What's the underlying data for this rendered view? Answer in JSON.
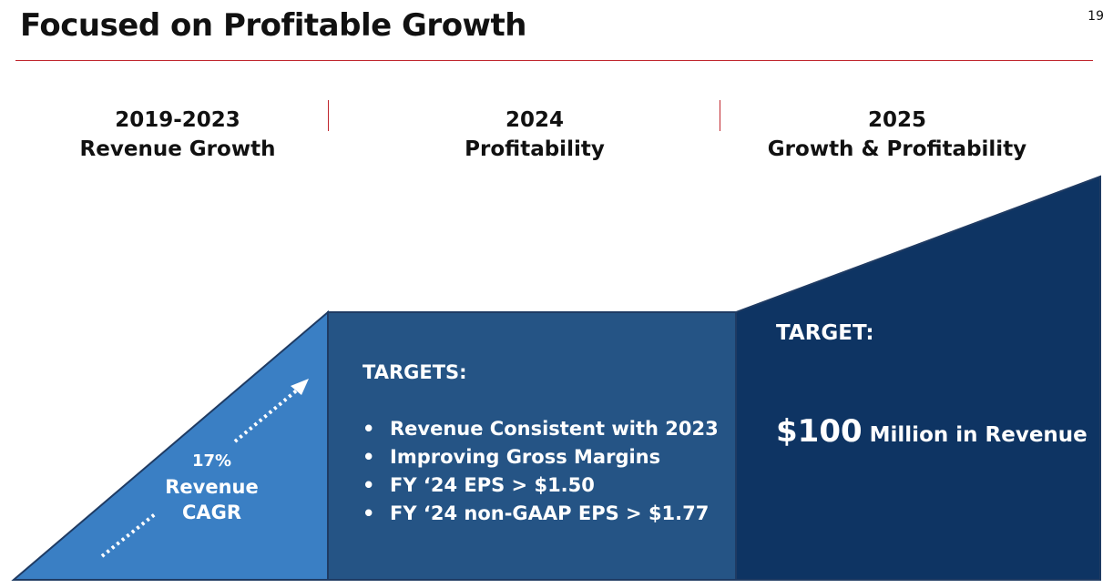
{
  "header": {
    "title": "Focused on Profitable Growth",
    "page_number": "19"
  },
  "phases": [
    {
      "year": "2019-2023",
      "label": "Revenue Growth"
    },
    {
      "year": "2024",
      "label": "Profitability"
    },
    {
      "year": "2025",
      "label": "Growth & Profitability"
    }
  ],
  "triangle": {
    "pct": "17%",
    "line1": "Revenue",
    "line2": "CAGR"
  },
  "middle": {
    "heading": "TARGETS:",
    "items": [
      "Revenue Consistent with 2023",
      "Improving Gross Margins",
      "FY ‘24 EPS > $1.50",
      "FY ‘24 non-GAAP EPS > $1.77"
    ]
  },
  "right": {
    "heading": "TARGET:",
    "amount": "$100",
    "amount_suffix": " Million in Revenue"
  },
  "colors": {
    "accent_red": "#c0262d",
    "light_blue": "#3a7fc4",
    "mid_blue": "#255485",
    "dark_blue": "#0e3463"
  }
}
